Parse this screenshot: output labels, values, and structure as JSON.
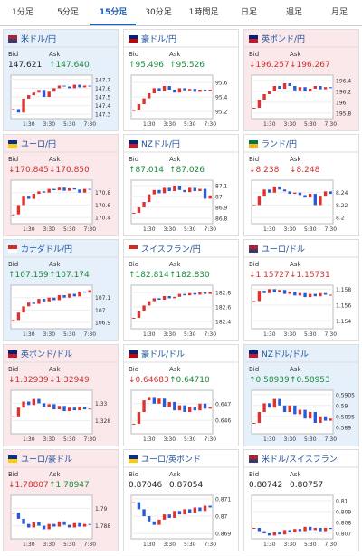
{
  "tabs": [
    "1分足",
    "5分足",
    "15分足",
    "30分足",
    "1時間足",
    "日足",
    "週足",
    "月足"
  ],
  "active_tab": 2,
  "panels": [
    {
      "name": "米ドル/円",
      "bid_label": "Bid",
      "ask_label": "Ask",
      "bid": "147.621",
      "ask": "↑147.640",
      "tone": "up",
      "flag": [
        "#b22234",
        "#3c3b6e"
      ],
      "chart_data": {
        "type": "candlestick",
        "ylim": [
          147.25,
          147.75
        ],
        "yticks": [
          147.7,
          147.6,
          147.5,
          147.4,
          147.3
        ],
        "xticks": [
          "1:30",
          "3:30",
          "5:30",
          "7:30"
        ],
        "values": [
          147.36,
          147.32,
          147.48,
          147.52,
          147.55,
          147.58,
          147.5,
          147.56,
          147.6,
          147.63,
          147.62,
          147.6,
          147.64,
          147.61,
          147.63,
          147.62
        ]
      }
    },
    {
      "name": "豪ドル/円",
      "bid_label": "Bid",
      "ask_label": "Ask",
      "bid": "↑95.496",
      "ask": "↑95.526",
      "tone": "none",
      "flag": [
        "#00247d",
        "#cc0000"
      ],
      "chart_data": {
        "type": "candlestick",
        "ylim": [
          95.1,
          95.7
        ],
        "yticks": [
          95.6,
          95.4,
          95.2
        ],
        "xticks": [
          "1:30",
          "3:30",
          "5:30",
          "7:30"
        ],
        "values": [
          95.22,
          95.3,
          95.38,
          95.45,
          95.52,
          95.48,
          95.55,
          95.5,
          95.46,
          95.52,
          95.49,
          95.51,
          95.47,
          95.5,
          95.48,
          95.5
        ]
      }
    },
    {
      "name": "英ポンド/円",
      "bid_label": "Bid",
      "ask_label": "Ask",
      "bid": "↓196.257",
      "ask": "↓196.267",
      "tone": "down",
      "flag": [
        "#00247d",
        "#cf142b"
      ],
      "chart_data": {
        "type": "candlestick",
        "ylim": [
          195.7,
          196.5
        ],
        "yticks": [
          196.4,
          196.2,
          196,
          195.8
        ],
        "xticks": [
          "1:30",
          "3:30",
          "5:30",
          "7:30"
        ],
        "values": [
          195.9,
          196.05,
          196.15,
          196.2,
          196.3,
          196.25,
          196.35,
          196.3,
          196.22,
          196.28,
          196.2,
          196.25,
          196.3,
          196.24,
          196.28,
          196.26
        ]
      }
    },
    {
      "name": "ユーロ/円",
      "bid_label": "Bid",
      "ask_label": "Ask",
      "bid": "↓170.845",
      "ask": "↓170.850",
      "tone": "down",
      "flag": [
        "#003399",
        "#ffcc00"
      ],
      "chart_data": {
        "type": "candlestick",
        "ylim": [
          170.3,
          171
        ],
        "yticks": [
          170.8,
          170.6,
          170.4
        ],
        "xticks": [
          "1:30",
          "3:30",
          "5:30",
          "7:30"
        ],
        "values": [
          170.45,
          170.6,
          170.75,
          170.7,
          170.78,
          170.82,
          170.8,
          170.86,
          170.84,
          170.88,
          170.83,
          170.87,
          170.85,
          170.8,
          170.86,
          170.85
        ]
      }
    },
    {
      "name": "NZドル/円",
      "bid_label": "Bid",
      "ask_label": "Ask",
      "bid": "↑87.014",
      "ask": "↑87.026",
      "tone": "none",
      "flag": [
        "#00247d",
        "#cc142b"
      ],
      "chart_data": {
        "type": "candlestick",
        "ylim": [
          86.75,
          87.15
        ],
        "yticks": [
          87.1,
          87,
          86.9,
          86.8
        ],
        "xticks": [
          "1:30",
          "3:30",
          "5:30",
          "7:30"
        ],
        "values": [
          86.85,
          86.9,
          86.95,
          87.02,
          87.06,
          87.03,
          87.08,
          87.05,
          87.1,
          87.06,
          87.04,
          87.08,
          87.05,
          87.07,
          86.98,
          87.01
        ]
      }
    },
    {
      "name": "ランド/円",
      "bid_label": "Bid",
      "ask_label": "Ask",
      "bid": "↓8.238",
      "ask": "↓8.248",
      "tone": "none",
      "flag": [
        "#007a4d",
        "#ffb612"
      ],
      "chart_data": {
        "type": "candlestick",
        "ylim": [
          8.19,
          8.26
        ],
        "yticks": [
          8.24,
          8.22,
          8.2
        ],
        "xticks": [
          "1:30",
          "3:30",
          "5:30",
          "7:30"
        ],
        "values": [
          8.22,
          8.235,
          8.245,
          8.24,
          8.25,
          8.245,
          8.242,
          8.238,
          8.24,
          8.236,
          8.232,
          8.238,
          8.22,
          8.235,
          8.242,
          8.238
        ]
      }
    },
    {
      "name": "カナダドル/円",
      "bid_label": "Bid",
      "ask_label": "Ask",
      "bid": "↑107.159",
      "ask": "↑107.174",
      "tone": "up",
      "flag": [
        "#d52b1e",
        "#ffffff"
      ],
      "chart_data": {
        "type": "candlestick",
        "ylim": [
          106.85,
          107.2
        ],
        "yticks": [
          107.1,
          107,
          106.9
        ],
        "xticks": [
          "1:30",
          "3:30",
          "5:30",
          "7:30"
        ],
        "values": [
          106.92,
          106.98,
          107.03,
          107.06,
          107.05,
          107.09,
          107.07,
          107.1,
          107.08,
          107.12,
          107.1,
          107.13,
          107.11,
          107.15,
          107.14,
          107.16
        ]
      }
    },
    {
      "name": "スイスフラン/円",
      "bid_label": "Bid",
      "ask_label": "Ask",
      "bid": "↑182.814",
      "ask": "↑182.830",
      "tone": "none",
      "flag": [
        "#d52b1e",
        "#ffffff"
      ],
      "chart_data": {
        "type": "candlestick",
        "ylim": [
          182.3,
          182.9
        ],
        "yticks": [
          182.8,
          182.6,
          182.4
        ],
        "xticks": [
          "1:30",
          "3:30",
          "5:30",
          "7:30"
        ],
        "values": [
          182.45,
          182.55,
          182.62,
          182.68,
          182.72,
          182.7,
          182.75,
          182.72,
          182.74,
          182.78,
          182.76,
          182.79,
          182.77,
          182.8,
          182.78,
          182.81
        ]
      }
    },
    {
      "name": "ユーロ/ドル",
      "bid_label": "Bid",
      "ask_label": "Ask",
      "bid": "↓1.15727",
      "ask": "↓1.15731",
      "tone": "none",
      "flag": [
        "#b22234",
        "#3c3b6e"
      ],
      "chart_data": {
        "type": "candlestick",
        "ylim": [
          1.153,
          1.1585
        ],
        "yticks": [
          1.158,
          1.156,
          1.154
        ],
        "xticks": [
          "1:30",
          "3:30",
          "5:30",
          "7:30"
        ],
        "values": [
          1.1565,
          1.1578,
          1.1575,
          1.158,
          1.1576,
          1.1579,
          1.1574,
          1.1577,
          1.1572,
          1.1575,
          1.157,
          1.1574,
          1.1571,
          1.1575,
          1.1573,
          1.1573
        ]
      }
    },
    {
      "name": "英ポンド/ドル",
      "bid_label": "Bid",
      "ask_label": "Ask",
      "bid": "↓1.32939",
      "ask": "↓1.32949",
      "tone": "down",
      "flag": [
        "#00247d",
        "#cf142b"
      ],
      "chart_data": {
        "type": "candlestick",
        "ylim": [
          1.3265,
          1.3315
        ],
        "yticks": [
          1.33,
          1.328
        ],
        "xticks": [
          "1:30",
          "3:30",
          "5:30",
          "7:30"
        ],
        "values": [
          1.3285,
          1.3295,
          1.3302,
          1.3298,
          1.3305,
          1.33,
          1.3296,
          1.3299,
          1.3293,
          1.3297,
          1.3291,
          1.3295,
          1.3292,
          1.3296,
          1.3293,
          1.3294
        ]
      }
    },
    {
      "name": "豪ドル/ドル",
      "bid_label": "Bid",
      "ask_label": "Ask",
      "bid": "↓0.64683",
      "ask": "↑0.64710",
      "tone": "none",
      "flag": [
        "#00247d",
        "#cc0000"
      ],
      "chart_data": {
        "type": "candlestick",
        "ylim": [
          0.6452,
          0.6478
        ],
        "yticks": [
          0.647,
          0.646
        ],
        "xticks": [
          "1:30",
          "3:30",
          "5:30",
          "7:30"
        ],
        "values": [
          0.6458,
          0.6465,
          0.6472,
          0.6474,
          0.647,
          0.6473,
          0.6468,
          0.6471,
          0.6466,
          0.6469,
          0.6465,
          0.6468,
          0.6466,
          0.647,
          0.6467,
          0.6468
        ]
      }
    },
    {
      "name": "NZドル/ドル",
      "bid_label": "Bid",
      "ask_label": "Ask",
      "bid": "↑0.58939",
      "ask": "↑0.58953",
      "tone": "up",
      "flag": [
        "#00247d",
        "#cc142b"
      ],
      "chart_data": {
        "type": "candlestick",
        "ylim": [
          0.5887,
          0.5907
        ],
        "yticks": [
          0.5905,
          0.59,
          0.5895,
          0.589
        ],
        "xticks": [
          "1:30",
          "3:30",
          "5:30",
          "7:30"
        ],
        "values": [
          0.5892,
          0.5897,
          0.5901,
          0.5899,
          0.5903,
          0.59,
          0.5897,
          0.59,
          0.5896,
          0.5898,
          0.5894,
          0.5897,
          0.5892,
          0.5895,
          0.5893,
          0.5894
        ]
      }
    },
    {
      "name": "ユーロ/豪ドル",
      "bid_label": "Bid",
      "ask_label": "Ask",
      "bid": "↓1.78807",
      "ask": "↑1.78947",
      "tone": "down",
      "flag": [
        "#003399",
        "#ffcc00"
      ],
      "chart_data": {
        "type": "candlestick",
        "ylim": [
          1.7865,
          1.7915
        ],
        "yticks": [
          1.79,
          1.788
        ],
        "xticks": [
          "1:30",
          "3:30",
          "5:30",
          "7:30"
        ],
        "values": [
          1.7895,
          1.7888,
          1.7882,
          1.7878,
          1.7884,
          1.788,
          1.7876,
          1.7882,
          1.7879,
          1.7885,
          1.7881,
          1.7878,
          1.7883,
          1.7879,
          1.7882,
          1.7881
        ]
      }
    },
    {
      "name": "ユーロ/英ポンド",
      "bid_label": "Bid",
      "ask_label": "Ask",
      "bid": "0.87046",
      "ask": "0.87054",
      "tone": "none",
      "flag": [
        "#003399",
        "#ffcc00"
      ],
      "chart_data": {
        "type": "candlestick",
        "ylim": [
          0.8687,
          0.8712
        ],
        "yticks": [
          0.871,
          0.87,
          0.869
        ],
        "xticks": [
          "1:30",
          "3:30",
          "5:30",
          "7:30"
        ],
        "values": [
          0.8708,
          0.8704,
          0.87,
          0.8697,
          0.8695,
          0.8698,
          0.8701,
          0.8699,
          0.8703,
          0.8701,
          0.8704,
          0.8702,
          0.8705,
          0.8703,
          0.8706,
          0.8705
        ]
      }
    },
    {
      "name": "米ドル/スイスフラン",
      "bid_label": "Bid",
      "ask_label": "Ask",
      "bid": "0.80742",
      "ask": "0.80757",
      "tone": "none",
      "flag": [
        "#b22234",
        "#3c3b6e"
      ],
      "chart_data": {
        "type": "candlestick",
        "ylim": [
          0.8065,
          0.8105
        ],
        "yticks": [
          0.81,
          0.809,
          0.808,
          0.807
        ],
        "xticks": [
          "1:30",
          "3:30",
          "5:30",
          "7:30"
        ],
        "values": [
          0.8075,
          0.8072,
          0.807,
          0.8068,
          0.8071,
          0.8069,
          0.8073,
          0.8071,
          0.8074,
          0.8072,
          0.8076,
          0.8073,
          0.8075,
          0.8072,
          0.8075,
          0.8074
        ]
      }
    }
  ]
}
